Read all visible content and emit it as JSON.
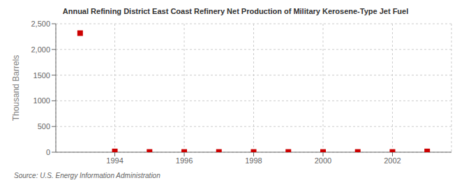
{
  "chart_data": {
    "type": "scatter",
    "title": "Annual Refining District East Coast Refinery Net Production of Military Kerosene-Type Jet Fuel",
    "ylabel": "Thousand Barrels",
    "annotations": [
      "Source: U.S. Energy Information Administration"
    ],
    "x": [
      1993,
      1994,
      1995,
      1996,
      1997,
      1998,
      1999,
      2000,
      2001,
      2002,
      2003
    ],
    "values": [
      2317,
      15,
      5,
      5,
      5,
      5,
      5,
      5,
      5,
      5,
      15
    ],
    "color": "#cc0000",
    "marker": "square",
    "xlim": [
      1992.3,
      2003.7
    ],
    "xticks": [
      1994,
      1996,
      1998,
      2000,
      2002
    ],
    "ylim": [
      0,
      2500
    ],
    "yticks": [
      0,
      500,
      1000,
      1500,
      {
        "value": 2000,
        "label": "2,000"
      },
      {
        "value": 2500,
        "label": "2,500"
      }
    ],
    "grid": true
  }
}
